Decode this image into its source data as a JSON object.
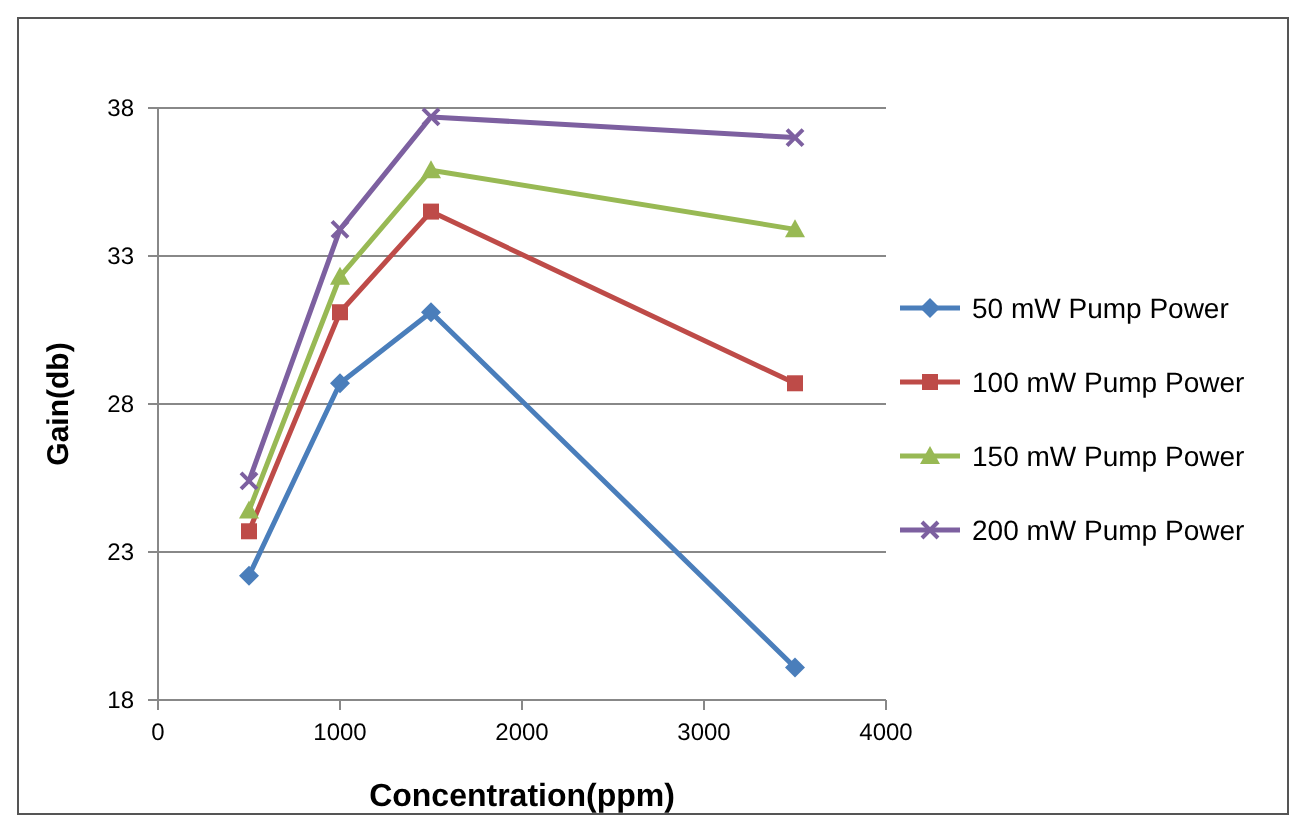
{
  "chart_data": {
    "type": "line",
    "xlabel": "Concentration(ppm)",
    "ylabel": "Gain(db)",
    "xlim": [
      0,
      4000
    ],
    "xticks": [
      0,
      1000,
      2000,
      3000,
      4000
    ],
    "ylim": [
      18,
      38
    ],
    "yticks": [
      18,
      23,
      28,
      33,
      38
    ],
    "grid": "y",
    "legend": "right",
    "x": [
      500,
      1000,
      1500,
      3500
    ],
    "series": [
      {
        "name": "50 mW Pump Power",
        "color": "#4a7ebb",
        "marker": "diamond",
        "values": [
          22.2,
          28.7,
          31.1,
          19.1
        ]
      },
      {
        "name": "100 mW Pump Power",
        "color": "#be4b48",
        "marker": "square",
        "values": [
          23.7,
          31.1,
          34.5,
          28.7
        ]
      },
      {
        "name": "150 mW Pump Power",
        "color": "#98b954",
        "marker": "triangle",
        "values": [
          24.4,
          32.3,
          35.9,
          33.9
        ]
      },
      {
        "name": "200 mW Pump Power",
        "color": "#7d60a0",
        "marker": "cross",
        "values": [
          25.4,
          33.9,
          37.7,
          37.0
        ]
      }
    ]
  }
}
